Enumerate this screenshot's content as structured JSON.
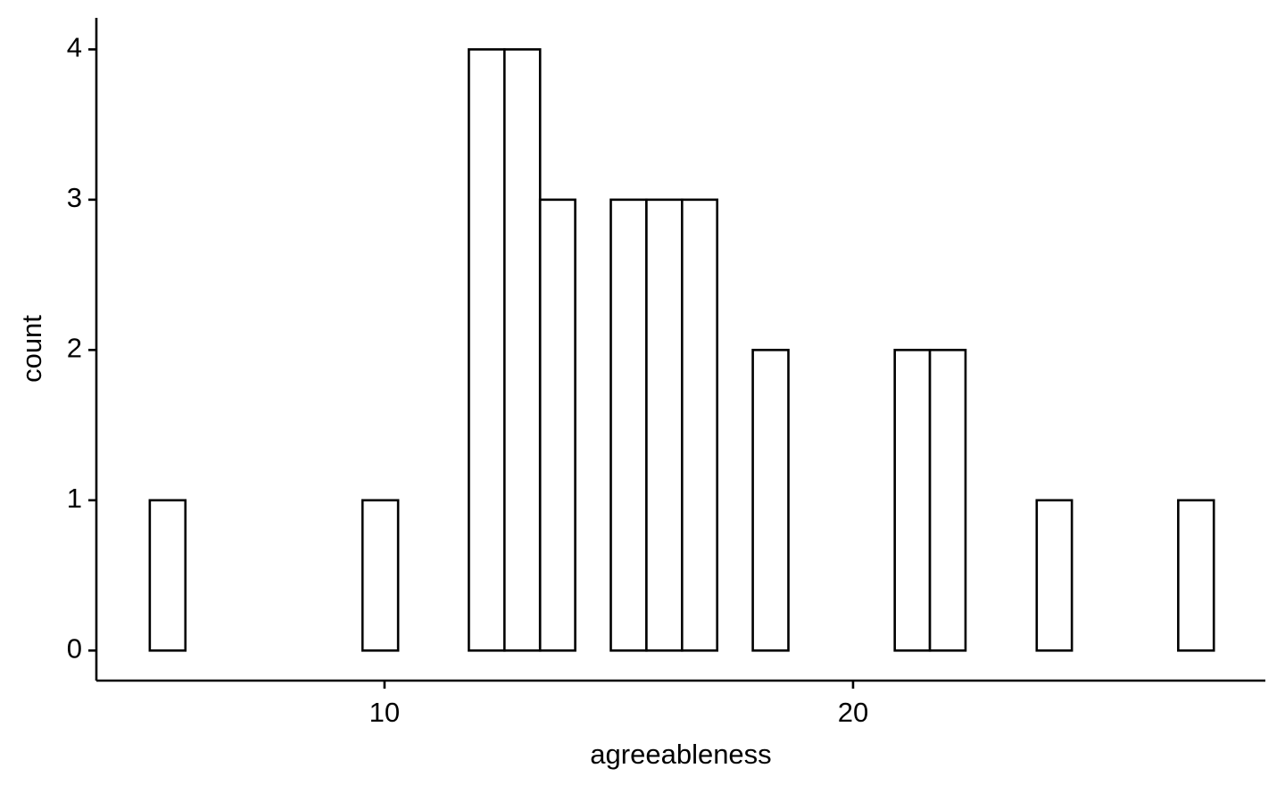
{
  "chart_data": {
    "type": "histogram",
    "x_label": "agreeableness",
    "y_label": "count",
    "bins": [
      4.99,
      5.75,
      6.5,
      7.26,
      8.02,
      8.78,
      9.53,
      10.29,
      11.05,
      11.8,
      12.56,
      13.32,
      14.07,
      14.83,
      15.59,
      16.35,
      17.1,
      17.86,
      18.62,
      19.37,
      20.13,
      20.89,
      21.64,
      22.4,
      23.16,
      23.92,
      24.67,
      25.43,
      26.19,
      26.94,
      27.7
    ],
    "values": [
      1,
      0,
      0,
      0,
      0,
      0,
      1,
      0,
      0,
      4,
      4,
      3,
      0,
      3,
      3,
      3,
      0,
      2,
      0,
      0,
      0,
      2,
      2,
      0,
      0,
      1,
      0,
      0,
      0,
      1
    ],
    "color": "#ffffff",
    "edgecolor": "#000000",
    "xlim": [
      3.85,
      28.8
    ],
    "ylim": [
      -0.2,
      4.21
    ],
    "xticks": [
      10,
      20
    ],
    "yticks": [
      0,
      1,
      2,
      3,
      4
    ]
  }
}
